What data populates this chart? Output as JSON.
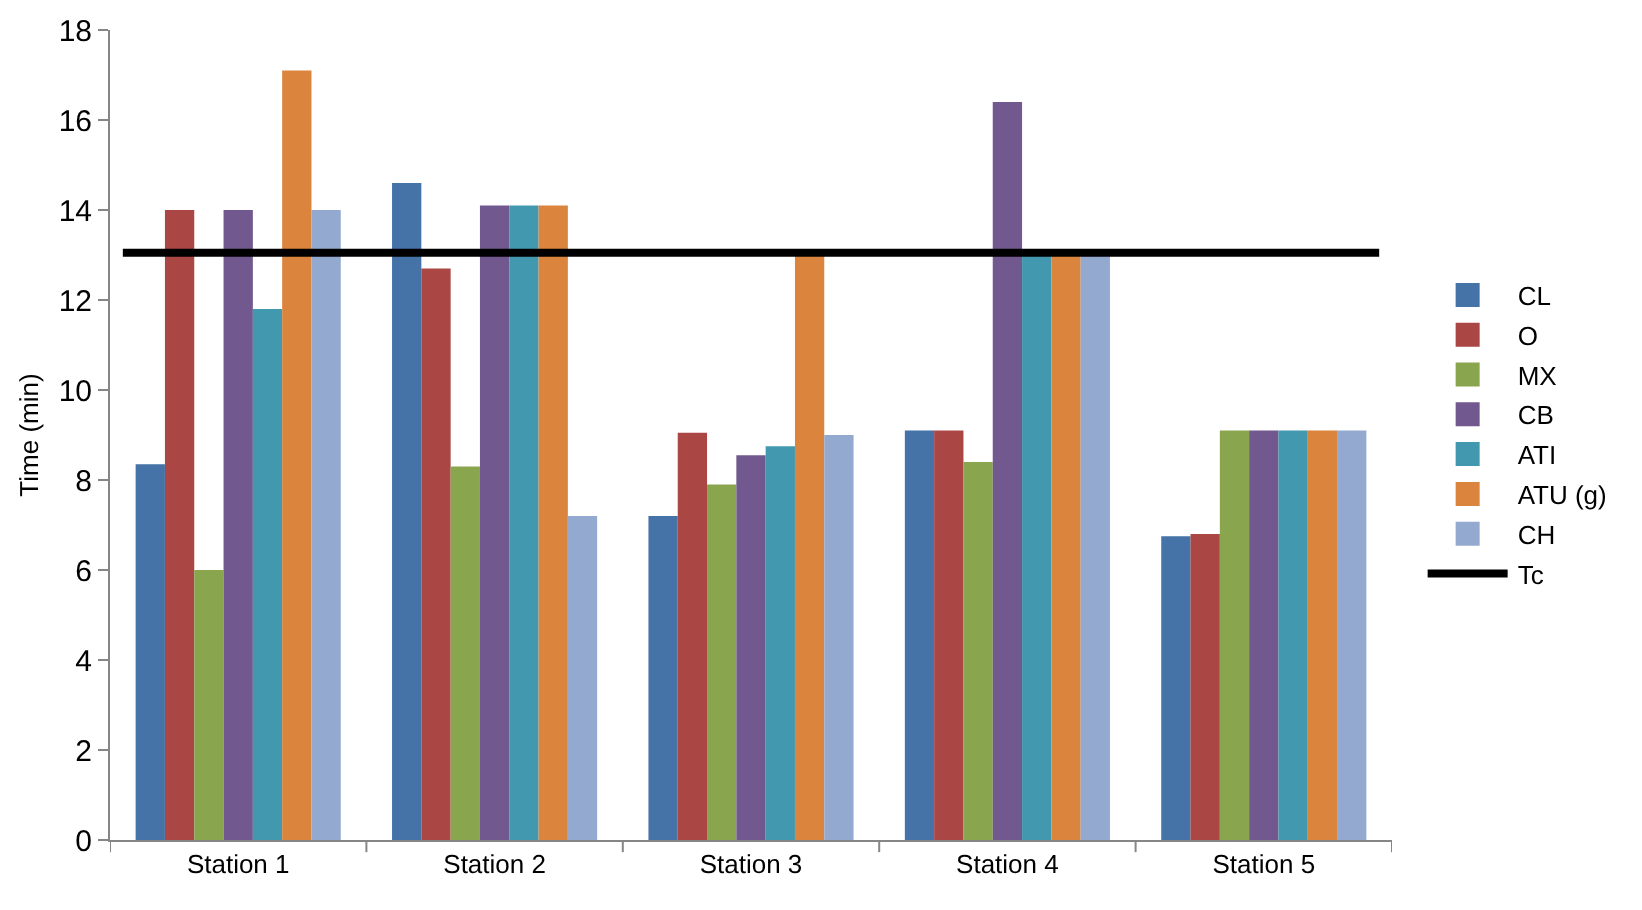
{
  "chart_data": {
    "type": "bar",
    "ylabel": "Time (min)",
    "categories": [
      "Station 1",
      "Station 2",
      "Station 3",
      "Station 4",
      "Station 5"
    ],
    "series": [
      {
        "name": "CL",
        "color": "#4572a7",
        "values": [
          8.35,
          14.6,
          7.2,
          9.1,
          6.75
        ]
      },
      {
        "name": "O",
        "color": "#aa4643",
        "values": [
          14,
          12.7,
          9.05,
          9.1,
          6.8
        ]
      },
      {
        "name": "MX",
        "color": "#89a54e",
        "values": [
          6,
          8.3,
          7.9,
          8.4,
          9.1
        ]
      },
      {
        "name": "CB",
        "color": "#71588f",
        "values": [
          14,
          14.1,
          8.55,
          16.4,
          9.1
        ]
      },
      {
        "name": "ATI",
        "color": "#4198af",
        "values": [
          11.8,
          14.1,
          8.75,
          13,
          9.1
        ]
      },
      {
        "name": "ATU (g)",
        "color": "#db843d",
        "values": [
          17.1,
          14.1,
          13,
          13,
          9.1
        ]
      },
      {
        "name": "CH",
        "color": "#93a9cf",
        "values": [
          14,
          7.2,
          9,
          13,
          9.1
        ]
      }
    ],
    "ref_lines": [
      {
        "axis": "y",
        "value": 13.05,
        "label": "Tc",
        "color": "#000000",
        "line_style": "solid"
      }
    ],
    "ylim": [
      0,
      18
    ],
    "yticks": [
      0,
      2,
      4,
      6,
      8,
      10,
      12,
      14,
      16,
      18
    ],
    "grid": false,
    "legend": "right"
  }
}
